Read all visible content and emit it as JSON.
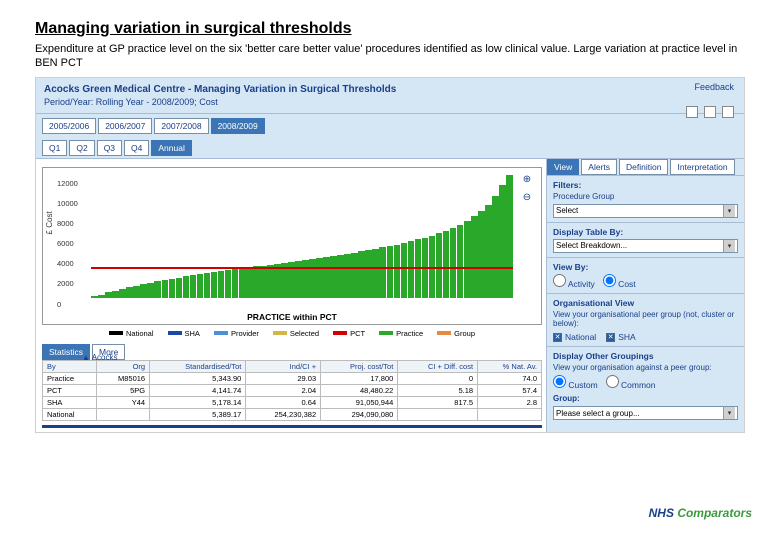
{
  "title": "Managing variation in surgical thresholds",
  "subtitle": "Expenditure at GP practice level on the six 'better care better value' procedures identified as low clinical value. Large variation at practice level in BEN PCT",
  "feedback": "Feedback",
  "app_title": "Acocks Green Medical Centre - Managing Variation in Surgical Thresholds",
  "period": "Period/Year: Rolling Year - 2008/2009; Cost",
  "years": [
    "2005/2006",
    "2006/2007",
    "2007/2008",
    "2008/2009"
  ],
  "year_active": 3,
  "quarters": [
    "Q1",
    "Q2",
    "Q3",
    "Q4",
    "Annual"
  ],
  "q_active": 4,
  "side_tabs": [
    "View",
    "Alerts",
    "Definition",
    "Interpretation"
  ],
  "side_tab_active": 0,
  "filters_label": "Filters:",
  "filters_sub": "Procedure Group",
  "filters_value": "Select",
  "disp_table_label": "Display Table By:",
  "disp_table_value": "Select Breakdown...",
  "view_by_label": "View By:",
  "view_by_opts": [
    "Activity",
    "Cost"
  ],
  "view_by_sel": 1,
  "org_view_label": "Organisational View",
  "org_view_note": "View your organisational peer group (not, cluster or below):",
  "org_checks": [
    "National",
    "SHA"
  ],
  "groupings_label": "Display Other Groupings",
  "groupings_note": "View your organisation against a peer group:",
  "group_opts": [
    "Custom",
    "Common"
  ],
  "group_sel": 0,
  "group_label": "Group:",
  "group_value": "Please select a group...",
  "chart": {
    "acocks_label": "▲ Acocks",
    "y_ticks": [
      "12000",
      "10000",
      "8000",
      "6000",
      "4000",
      "2000",
      "0"
    ],
    "y_max": 12500,
    "y_label": "£ Cost",
    "x_label": "PRACTICE within PCT",
    "threshold1": 3000,
    "threshold2": 2900,
    "bars": [
      120,
      300,
      520,
      700,
      900,
      1050,
      1200,
      1350,
      1500,
      1650,
      1780,
      1900,
      2020,
      2150,
      2250,
      2380,
      2480,
      2580,
      2680,
      2780,
      2880,
      2960,
      3050,
      3140,
      3230,
      3320,
      3410,
      3500,
      3590,
      3680,
      3780,
      3880,
      3980,
      4080,
      4180,
      4280,
      4400,
      4520,
      4650,
      4780,
      4920,
      5060,
      5200,
      5350,
      5500,
      5680,
      5860,
      6050,
      6260,
      6490,
      6740,
      7020,
      7350,
      7730,
      8180,
      8720,
      9380,
      10200,
      11350,
      12400
    ],
    "bar_color": "#2aa82a"
  },
  "legend": [
    {
      "label": "National",
      "color": "#000000"
    },
    {
      "label": "SHA",
      "color": "#1a48a8"
    },
    {
      "label": "Provider",
      "color": "#4a90d8"
    },
    {
      "label": "Selected",
      "color": "#d4b54a"
    },
    {
      "label": "PCT",
      "color": "#d40000"
    },
    {
      "label": "Practice",
      "color": "#2aa82a"
    },
    {
      "label": "Group",
      "color": "#e68a3f"
    }
  ],
  "stats_tabs": [
    "Statistics",
    "More"
  ],
  "stats_active": 0,
  "table": {
    "cols": [
      "By",
      "Org",
      "Standardised/Tot",
      "Ind/CI +",
      "Proj. cost/Tot",
      "CI + Diff. cost",
      "% Nat. Av."
    ],
    "rows": [
      [
        "Practice",
        "M85016",
        "5,343.90",
        "29.03",
        "17,800",
        "0",
        "74.0"
      ],
      [
        "PCT",
        "5PG",
        "4,141.74",
        "2.04",
        "48,480.22",
        "5.18",
        "57.4"
      ],
      [
        "SHA",
        "Y44",
        "5,178.14",
        "0.64",
        "91,050,944",
        "817.5",
        "2.8"
      ],
      [
        "National",
        "",
        "5,389.17",
        "254,230,382",
        "294,090,080",
        "",
        ""
      ]
    ]
  },
  "brand1": "NHS",
  "brand2": "Comparators"
}
